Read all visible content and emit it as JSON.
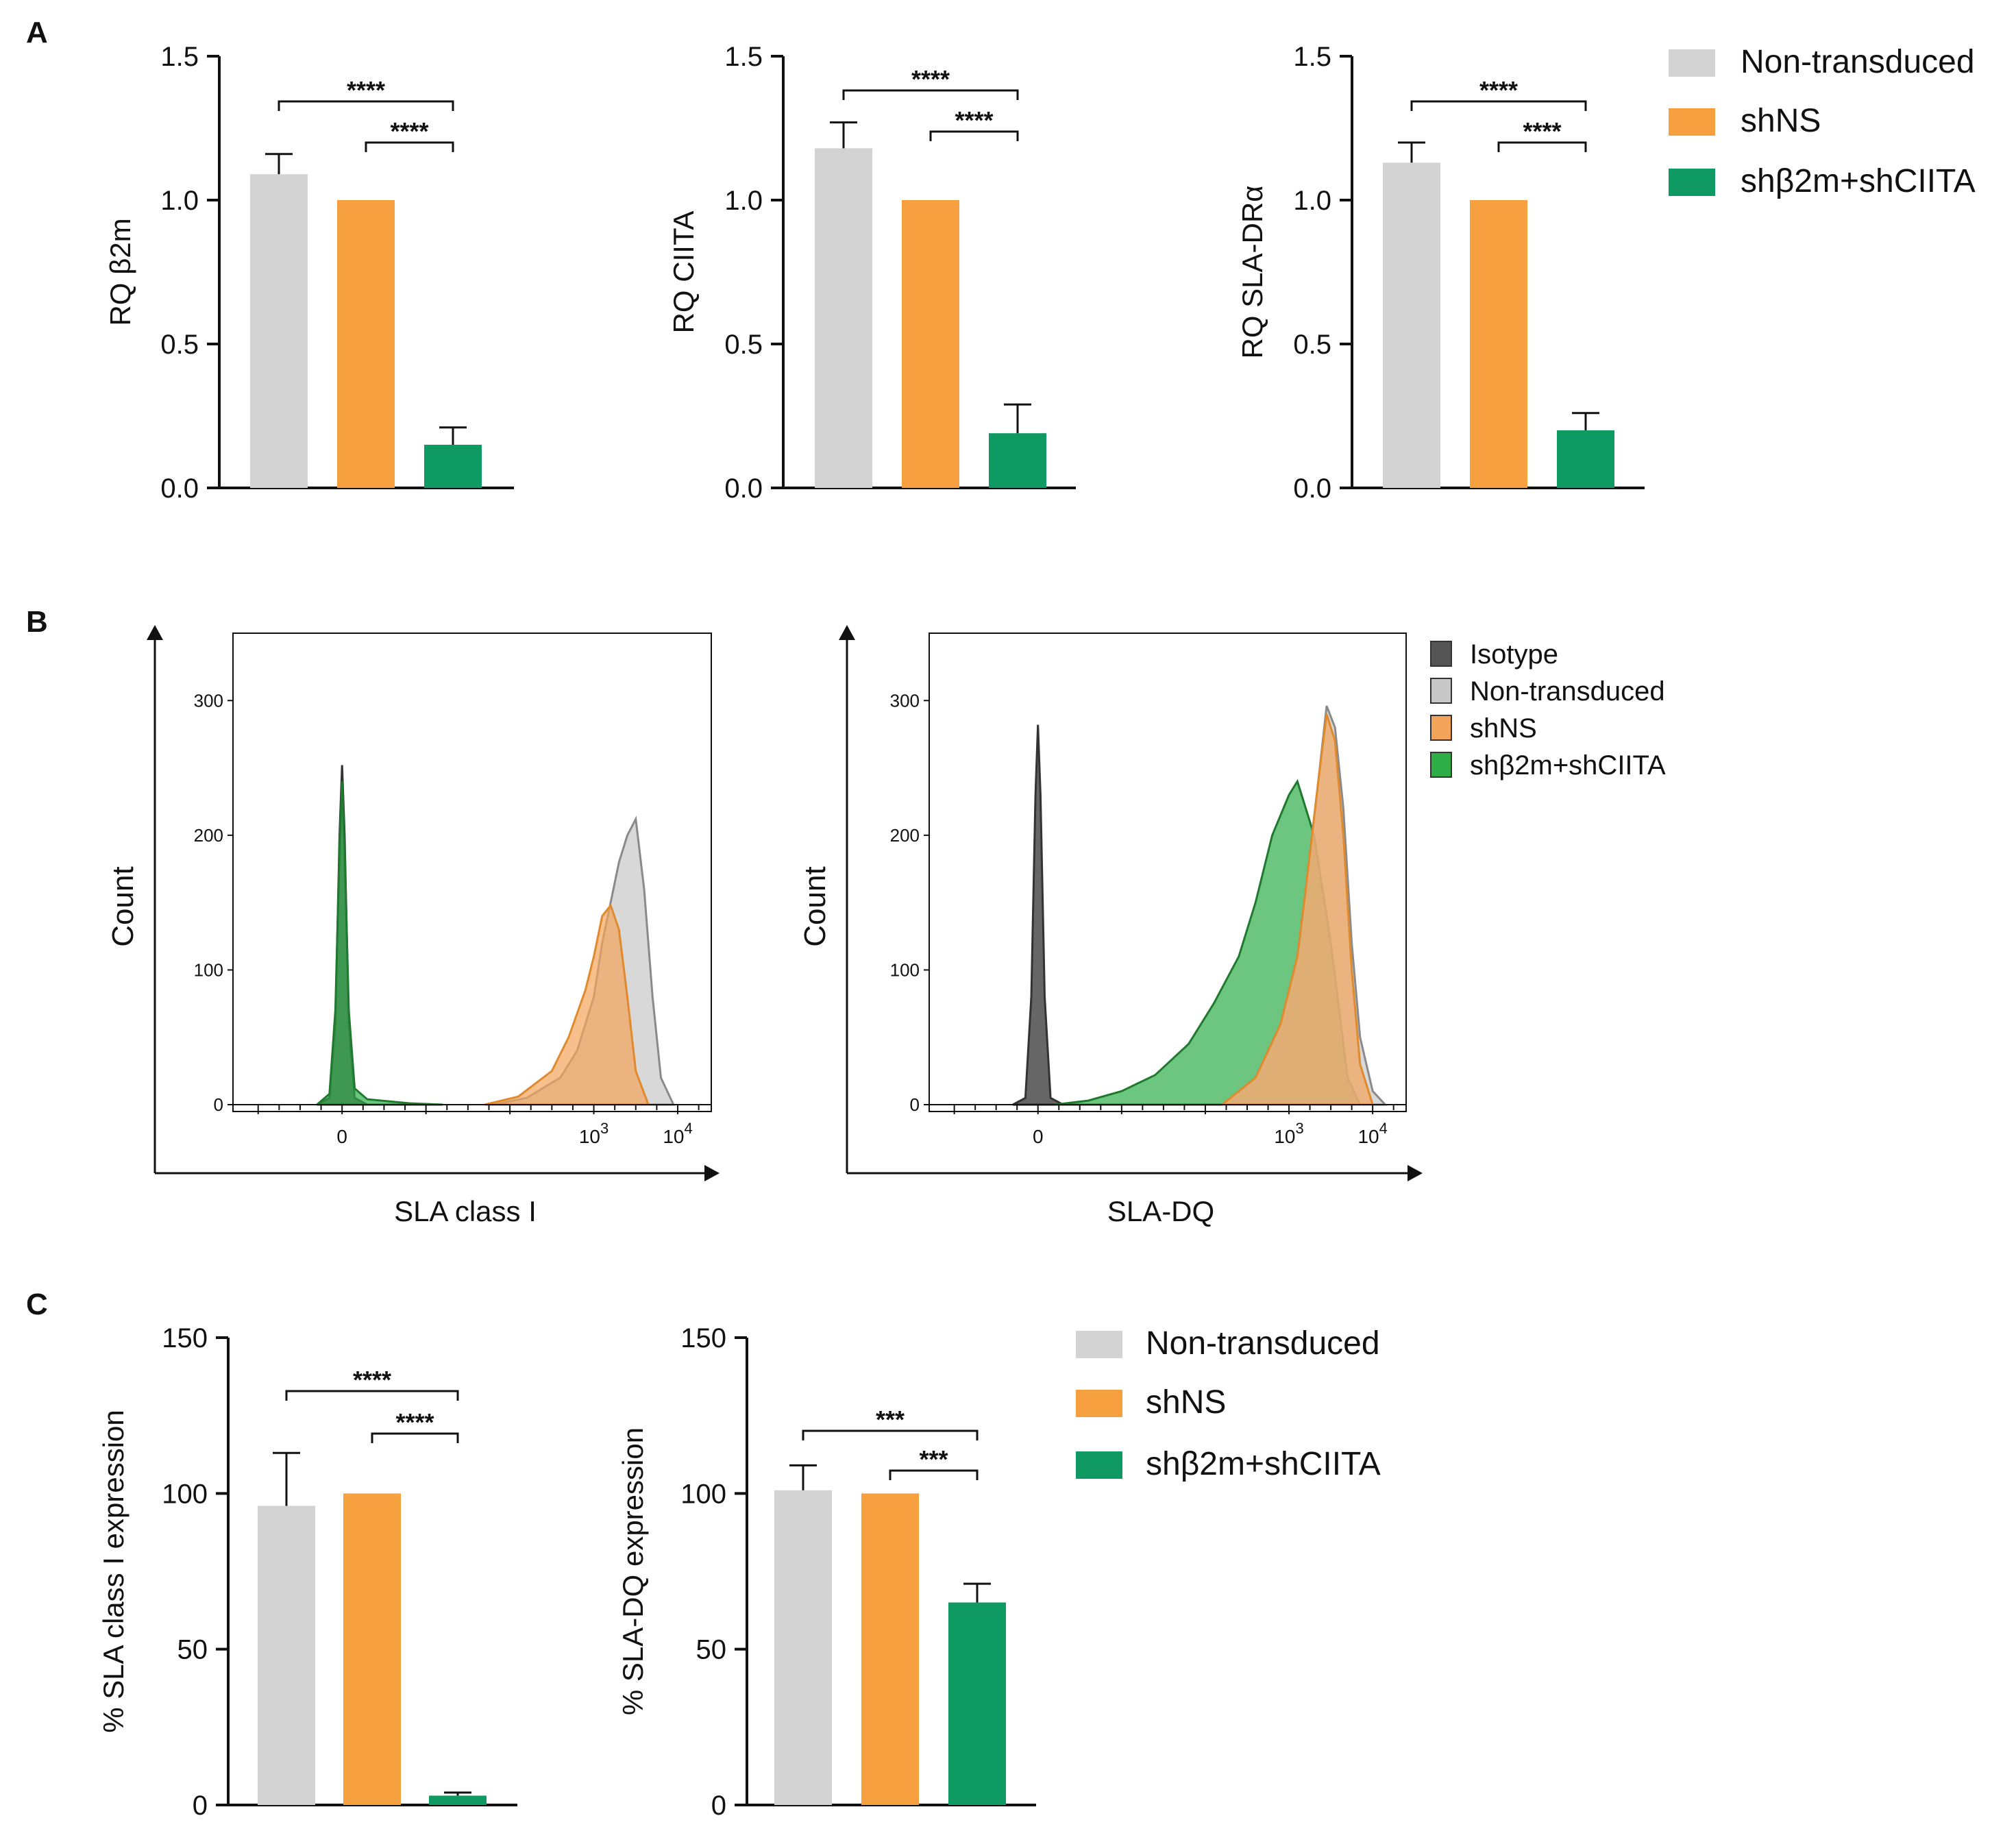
{
  "figure": {
    "panel_labels": [
      "A",
      "B",
      "C"
    ]
  },
  "colors": {
    "non_transduced": "#d3d3d3",
    "shNS": "#f7a040",
    "sh_combo": "#0f9a63",
    "isotope": "#555555",
    "hist_non_transduced": "#c8c8c8",
    "hist_shNS": "#f3a45a",
    "hist_combo": "#2fae48"
  },
  "legend_A": {
    "items": [
      {
        "key": "non_transduced",
        "label": "Non-transduced"
      },
      {
        "key": "shNS",
        "label": "shNS"
      },
      {
        "key": "sh_combo",
        "label": "shβ2m+shCIITA"
      }
    ]
  },
  "legend_B": {
    "items": [
      {
        "key": "isotope",
        "label": "Isotype"
      },
      {
        "key": "hist_non_transduced",
        "label": "Non-transduced"
      },
      {
        "key": "hist_shNS",
        "label": "shNS"
      },
      {
        "key": "hist_combo",
        "label": "shβ2m+shCIITA"
      }
    ]
  },
  "legend_C": {
    "items": [
      {
        "key": "non_transduced",
        "label": "Non-transduced"
      },
      {
        "key": "shNS",
        "label": "shNS"
      },
      {
        "key": "sh_combo",
        "label": "shβ2m+shCIITA"
      }
    ]
  },
  "chart_data": [
    {
      "id": "A1",
      "type": "bar",
      "panel": "A",
      "title": "",
      "xlabel": "",
      "ylabel": "RQ β2m",
      "categories": [
        "Non-transduced",
        "shNS",
        "shβ2m+shCIITA"
      ],
      "values": [
        1.09,
        1.0,
        0.15
      ],
      "errors": [
        0.07,
        0.0,
        0.06
      ],
      "ylim": [
        0,
        1.5
      ],
      "yticks": [
        0.0,
        0.5,
        1.0,
        1.5
      ],
      "ytick_labels": [
        "0.0",
        "0.5",
        "1.0",
        "1.5"
      ],
      "significance": [
        {
          "from": 0,
          "to": 2,
          "label": "****"
        },
        {
          "from": 1,
          "to": 2,
          "label": "****"
        }
      ]
    },
    {
      "id": "A2",
      "type": "bar",
      "panel": "A",
      "title": "",
      "xlabel": "",
      "ylabel": "RQ CIITA",
      "categories": [
        "Non-transduced",
        "shNS",
        "shβ2m+shCIITA"
      ],
      "values": [
        1.18,
        1.0,
        0.19
      ],
      "errors": [
        0.09,
        0.0,
        0.1
      ],
      "ylim": [
        0,
        1.5
      ],
      "yticks": [
        0.0,
        0.5,
        1.0,
        1.5
      ],
      "ytick_labels": [
        "0.0",
        "0.5",
        "1.0",
        "1.5"
      ],
      "significance": [
        {
          "from": 0,
          "to": 2,
          "label": "****"
        },
        {
          "from": 1,
          "to": 2,
          "label": "****"
        }
      ]
    },
    {
      "id": "A3",
      "type": "bar",
      "panel": "A",
      "title": "",
      "xlabel": "",
      "ylabel": "RQ SLA-DRα",
      "categories": [
        "Non-transduced",
        "shNS",
        "shβ2m+shCIITA"
      ],
      "values": [
        1.13,
        1.0,
        0.2
      ],
      "errors": [
        0.07,
        0.0,
        0.06
      ],
      "ylim": [
        0,
        1.5
      ],
      "yticks": [
        0.0,
        0.5,
        1.0,
        1.5
      ],
      "ytick_labels": [
        "0.0",
        "0.5",
        "1.0",
        "1.5"
      ],
      "significance": [
        {
          "from": 0,
          "to": 2,
          "label": "****"
        },
        {
          "from": 1,
          "to": 2,
          "label": "****"
        }
      ]
    },
    {
      "id": "B1",
      "type": "area",
      "panel": "B",
      "xlabel": "SLA class I",
      "ylabel": "Count",
      "ylim": [
        0,
        350
      ],
      "yticks": [
        0,
        100,
        200,
        300
      ],
      "ytick_labels": [
        "0",
        "100",
        "200",
        "300"
      ],
      "xlim": [
        -1.3,
        4.4
      ],
      "xtick_positions": [
        0,
        3,
        4
      ],
      "xtick_labels": [
        "0",
        "10^3",
        "10^4"
      ],
      "series": [
        {
          "key": "isotope",
          "name": "Isotype",
          "x": [
            -0.3,
            -0.15,
            -0.08,
            -0.03,
            0.0,
            0.03,
            0.08,
            0.15,
            0.3
          ],
          "y": [
            0,
            5,
            60,
            200,
            252,
            200,
            60,
            5,
            0
          ]
        },
        {
          "key": "hist_non_transduced",
          "name": "Non-transduced",
          "x": [
            1.8,
            2.2,
            2.6,
            2.8,
            3.0,
            3.1,
            3.2,
            3.3,
            3.4,
            3.5,
            3.6,
            3.7,
            3.8,
            3.95
          ],
          "y": [
            0,
            5,
            20,
            40,
            80,
            120,
            150,
            180,
            200,
            212,
            160,
            80,
            20,
            0
          ]
        },
        {
          "key": "hist_shNS",
          "name": "shNS",
          "x": [
            1.7,
            2.1,
            2.5,
            2.7,
            2.9,
            3.0,
            3.1,
            3.2,
            3.3,
            3.4,
            3.5,
            3.65
          ],
          "y": [
            0,
            6,
            25,
            50,
            85,
            110,
            140,
            148,
            130,
            80,
            25,
            0
          ]
        },
        {
          "key": "hist_combo",
          "name": "shβ2m+shCIITA",
          "x": [
            -0.3,
            -0.15,
            -0.08,
            -0.03,
            0.0,
            0.03,
            0.08,
            0.15,
            0.3,
            0.8,
            1.2
          ],
          "y": [
            0,
            8,
            70,
            190,
            240,
            190,
            70,
            12,
            4,
            1,
            0
          ]
        }
      ]
    },
    {
      "id": "B2",
      "type": "area",
      "panel": "B",
      "xlabel": "SLA-DQ",
      "ylabel": "Count",
      "ylim": [
        0,
        350
      ],
      "yticks": [
        0,
        100,
        200,
        300
      ],
      "ytick_labels": [
        "0",
        "100",
        "200",
        "300"
      ],
      "xlim": [
        -1.3,
        4.4
      ],
      "xtick_positions": [
        0,
        3,
        4
      ],
      "xtick_labels": [
        "0",
        "10^3",
        "10^4"
      ],
      "series": [
        {
          "key": "isotope",
          "name": "Isotype",
          "x": [
            -0.3,
            -0.15,
            -0.08,
            -0.03,
            0.0,
            0.03,
            0.08,
            0.15,
            0.3
          ],
          "y": [
            0,
            5,
            80,
            230,
            282,
            230,
            80,
            5,
            0
          ]
        },
        {
          "key": "hist_combo",
          "name": "shβ2m+shCIITA",
          "x": [
            0.2,
            0.6,
            1.0,
            1.4,
            1.8,
            2.1,
            2.4,
            2.6,
            2.8,
            3.0,
            3.1,
            3.2,
            3.3,
            3.4,
            3.5,
            3.6,
            3.7,
            3.85
          ],
          "y": [
            0,
            3,
            10,
            22,
            45,
            75,
            110,
            150,
            200,
            230,
            240,
            220,
            200,
            160,
            120,
            70,
            20,
            0
          ]
        },
        {
          "key": "hist_non_transduced",
          "name": "Non-transduced",
          "x": [
            2.2,
            2.6,
            2.9,
            3.1,
            3.2,
            3.35,
            3.45,
            3.55,
            3.65,
            3.75,
            3.85,
            4.0,
            4.15
          ],
          "y": [
            0,
            20,
            60,
            110,
            160,
            240,
            296,
            280,
            220,
            120,
            50,
            10,
            0
          ]
        },
        {
          "key": "hist_shNS",
          "name": "shNS",
          "x": [
            2.2,
            2.6,
            2.9,
            3.1,
            3.2,
            3.35,
            3.45,
            3.55,
            3.65,
            3.75,
            3.85,
            4.0
          ],
          "y": [
            0,
            20,
            60,
            110,
            160,
            240,
            290,
            270,
            200,
            100,
            30,
            0
          ]
        }
      ]
    },
    {
      "id": "C1",
      "type": "bar",
      "panel": "C",
      "title": "",
      "xlabel": "",
      "ylabel": "% SLA class I expression",
      "categories": [
        "Non-transduced",
        "shNS",
        "shβ2m+shCIITA"
      ],
      "values": [
        96,
        100,
        3
      ],
      "errors": [
        17,
        0,
        1
      ],
      "ylim": [
        0,
        150
      ],
      "yticks": [
        0,
        50,
        100,
        150
      ],
      "ytick_labels": [
        "0",
        "50",
        "100",
        "150"
      ],
      "significance": [
        {
          "from": 0,
          "to": 2,
          "label": "****"
        },
        {
          "from": 1,
          "to": 2,
          "label": "****"
        }
      ]
    },
    {
      "id": "C2",
      "type": "bar",
      "panel": "C",
      "title": "",
      "xlabel": "",
      "ylabel": "% SLA-DQ expression",
      "categories": [
        "Non-transduced",
        "shNS",
        "shβ2m+shCIITA"
      ],
      "values": [
        101,
        100,
        65
      ],
      "errors": [
        8,
        0,
        6
      ],
      "ylim": [
        0,
        150
      ],
      "yticks": [
        0,
        50,
        100,
        150
      ],
      "ytick_labels": [
        "0",
        "50",
        "100",
        "150"
      ],
      "significance": [
        {
          "from": 0,
          "to": 2,
          "label": "***"
        },
        {
          "from": 1,
          "to": 2,
          "label": "***"
        }
      ]
    }
  ]
}
